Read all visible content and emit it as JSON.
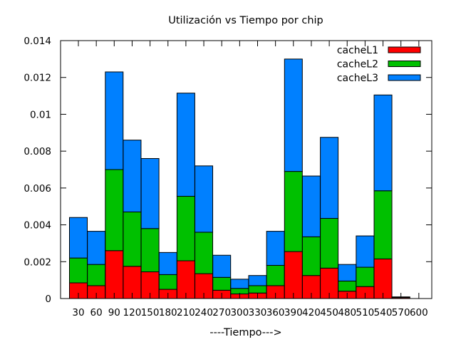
{
  "chart_data": {
    "type": "bar",
    "stacked": true,
    "title": "Utilización vs Tiempo por chip",
    "xlabel": "----Tiempo--->",
    "ylabel": "",
    "ylim": [
      0,
      0.014
    ],
    "yticks": [
      "0",
      "0.002",
      "0.004",
      "0.006",
      "0.008",
      "0.01",
      "0.012",
      "0.014"
    ],
    "grid": false,
    "legend_position": "top-right",
    "categories": [
      "30",
      "60",
      "90",
      "120",
      "150",
      "180",
      "210",
      "240",
      "270",
      "300",
      "330",
      "360",
      "390",
      "420",
      "450",
      "480",
      "510",
      "540",
      "570",
      "600"
    ],
    "series": [
      {
        "name": "cacheL1",
        "color": "#ff0000",
        "values": [
          0.00085,
          0.0007,
          0.0026,
          0.00175,
          0.00145,
          0.0005,
          0.00205,
          0.00135,
          0.00045,
          0.00025,
          0.0003,
          0.0007,
          0.00255,
          0.00125,
          0.00165,
          0.0004,
          0.00065,
          0.00215,
          5e-05,
          0
        ]
      },
      {
        "name": "cacheL2",
        "color": "#00c000",
        "values": [
          0.00135,
          0.00115,
          0.0044,
          0.00295,
          0.00235,
          0.0008,
          0.0035,
          0.00225,
          0.0007,
          0.0003,
          0.0004,
          0.0011,
          0.00435,
          0.0021,
          0.0027,
          0.00055,
          0.00105,
          0.0037,
          2e-05,
          0
        ]
      },
      {
        "name": "cacheL3",
        "color": "#0080ff",
        "values": [
          0.0022,
          0.0018,
          0.0053,
          0.0039,
          0.0038,
          0.0012,
          0.0056,
          0.0036,
          0.0012,
          0.0005,
          0.00055,
          0.00185,
          0.0061,
          0.0033,
          0.0044,
          0.0009,
          0.0017,
          0.0052,
          2e-05,
          0
        ]
      }
    ]
  }
}
